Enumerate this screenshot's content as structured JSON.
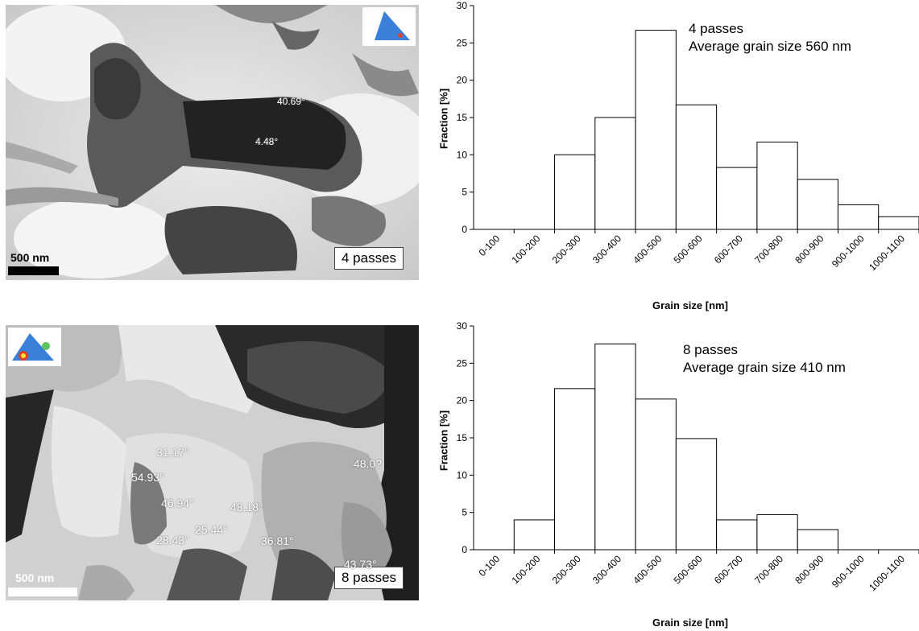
{
  "panels": [
    {
      "image_label": "4 passes",
      "scale_label": "500 nm",
      "angles": [
        "40.69°",
        "4.48°"
      ],
      "annotation_line1": "4 passes",
      "annotation_line2": "Average grain size 560 nm"
    },
    {
      "image_label": "8 passes",
      "scale_label": "500 nm",
      "angles": [
        "31.17°",
        "54.93°",
        "46.94°",
        "48.18°",
        "25.44°",
        "28.43°",
        "36.81°",
        "48.0?",
        "43.73°"
      ],
      "annotation_line1": "8 passes",
      "annotation_line2": "Average grain size 410 nm"
    }
  ],
  "chart_data": [
    {
      "type": "bar",
      "categories": [
        "0-100",
        "100-200",
        "200-300",
        "300-400",
        "400-500",
        "500-600",
        "600-700",
        "700-800",
        "800-900",
        "900-1000",
        "1000-1100"
      ],
      "values": [
        0,
        0,
        10,
        15,
        26.7,
        16.7,
        8.3,
        11.7,
        6.7,
        3.3,
        1.7
      ],
      "xlabel": "Grain size [nm]",
      "ylabel": "Fraction [%]",
      "ylim": [
        0,
        30
      ],
      "yticks": [
        "0",
        "5",
        "10",
        "15",
        "20",
        "25",
        "30"
      ],
      "grid": false
    },
    {
      "type": "bar",
      "categories": [
        "0-100",
        "100-200",
        "200-300",
        "300-400",
        "400-500",
        "500-600",
        "600-700",
        "700-800",
        "800-900",
        "900-1000",
        "1000-1100"
      ],
      "values": [
        0,
        4,
        21.6,
        27.6,
        20.2,
        14.9,
        4,
        4.7,
        2.7,
        0,
        0
      ],
      "xlabel": "Grain size [nm]",
      "ylabel": "Fraction [%]",
      "ylim": [
        0,
        30
      ],
      "yticks": [
        "0",
        "5",
        "10",
        "15",
        "20",
        "25",
        "30"
      ],
      "grid": false
    }
  ],
  "colors": {
    "bar_fill": "#ffffff",
    "bar_stroke": "#000000",
    "tem_light": "#e6e6e6",
    "tem_dark": "#1e1e1e"
  }
}
